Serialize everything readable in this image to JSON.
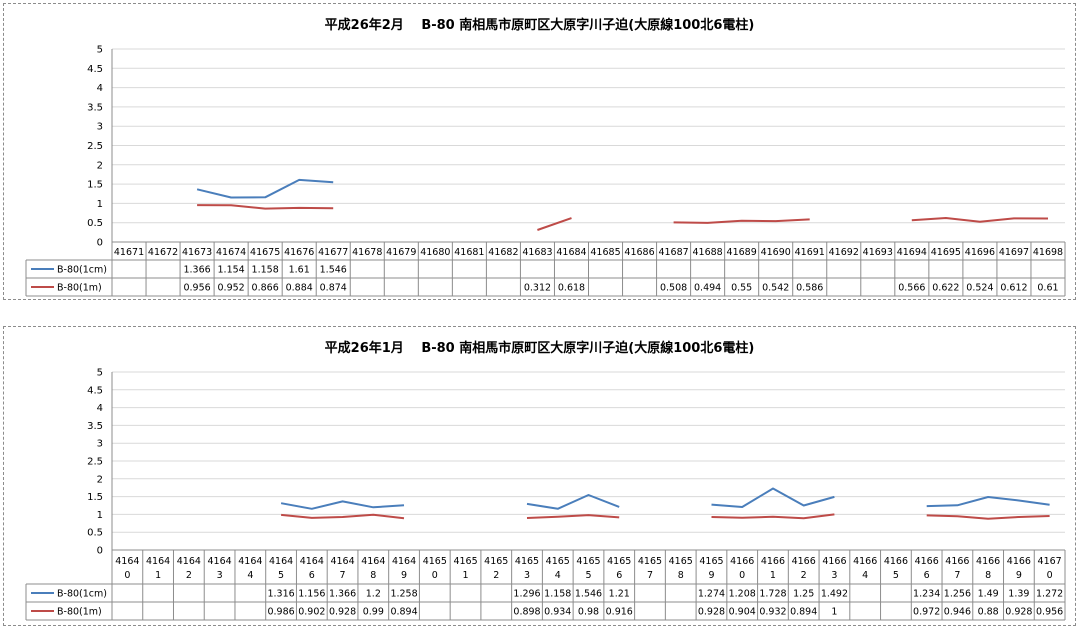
{
  "chart_data": [
    {
      "type": "line",
      "title": "平成26年2月　 B-80 南相馬市原町区大原字川子迫(大原線100北6電柱)",
      "ylim": [
        0,
        5
      ],
      "yticks": [
        "0",
        "0.5",
        "1",
        "1.5",
        "2",
        "2.5",
        "3",
        "3.5",
        "4",
        "4.5",
        "5"
      ],
      "categories": [
        "41671",
        "41672",
        "41673",
        "41674",
        "41675",
        "41676",
        "41677",
        "41678",
        "41679",
        "41680",
        "41681",
        "41682",
        "41683",
        "41684",
        "41685",
        "41686",
        "41687",
        "41688",
        "41689",
        "41690",
        "41691",
        "41692",
        "41693",
        "41694",
        "41695",
        "41696",
        "41697",
        "41698"
      ],
      "series": [
        {
          "name": "B-80(1cm)",
          "color": "#4a7ebb",
          "values": [
            null,
            null,
            1.366,
            1.154,
            1.158,
            1.61,
            1.546,
            null,
            null,
            null,
            null,
            null,
            null,
            null,
            null,
            null,
            null,
            null,
            null,
            null,
            null,
            null,
            null,
            null,
            null,
            null,
            null,
            null
          ]
        },
        {
          "name": "B-80(1m)",
          "color": "#be4b48",
          "values": [
            null,
            null,
            0.956,
            0.952,
            0.866,
            0.884,
            0.874,
            null,
            null,
            null,
            null,
            null,
            0.312,
            0.618,
            null,
            null,
            0.508,
            0.494,
            0.55,
            0.542,
            0.586,
            null,
            null,
            0.566,
            0.622,
            0.524,
            0.612,
            0.61
          ]
        }
      ],
      "grid": "horizontal",
      "legend": "data-table"
    },
    {
      "type": "line",
      "title": "平成26年1月　 B-80 南相馬市原町区大原字川子迫(大原線100北6電柱)",
      "ylim": [
        0,
        5
      ],
      "yticks": [
        "0",
        "0.5",
        "1",
        "1.5",
        "2",
        "2.5",
        "3",
        "3.5",
        "4",
        "4.5",
        "5"
      ],
      "categories": [
        "41640",
        "41641",
        "41642",
        "41643",
        "41644",
        "41645",
        "41646",
        "41647",
        "41648",
        "41649",
        "41650",
        "41651",
        "41652",
        "41653",
        "41654",
        "41655",
        "41656",
        "41657",
        "41658",
        "41659",
        "41660",
        "41661",
        "41662",
        "41663",
        "41664",
        "41665",
        "41666",
        "41667",
        "41668",
        "41669",
        "41670"
      ],
      "series": [
        {
          "name": "B-80(1cm)",
          "color": "#4a7ebb",
          "values": [
            null,
            null,
            null,
            null,
            null,
            1.316,
            1.156,
            1.366,
            1.2,
            1.258,
            null,
            null,
            null,
            1.296,
            1.158,
            1.546,
            1.21,
            null,
            null,
            1.274,
            1.208,
            1.728,
            1.25,
            1.492,
            null,
            null,
            1.234,
            1.256,
            1.49,
            1.39,
            1.272
          ]
        },
        {
          "name": "B-80(1m)",
          "color": "#be4b48",
          "values": [
            null,
            null,
            null,
            null,
            null,
            0.986,
            0.902,
            0.928,
            0.99,
            0.894,
            null,
            null,
            null,
            0.898,
            0.934,
            0.98,
            0.916,
            null,
            null,
            0.928,
            0.904,
            0.932,
            0.894,
            1,
            null,
            null,
            0.972,
            0.946,
            0.88,
            0.928,
            0.956
          ]
        }
      ],
      "grid": "horizontal",
      "legend": "data-table"
    }
  ]
}
